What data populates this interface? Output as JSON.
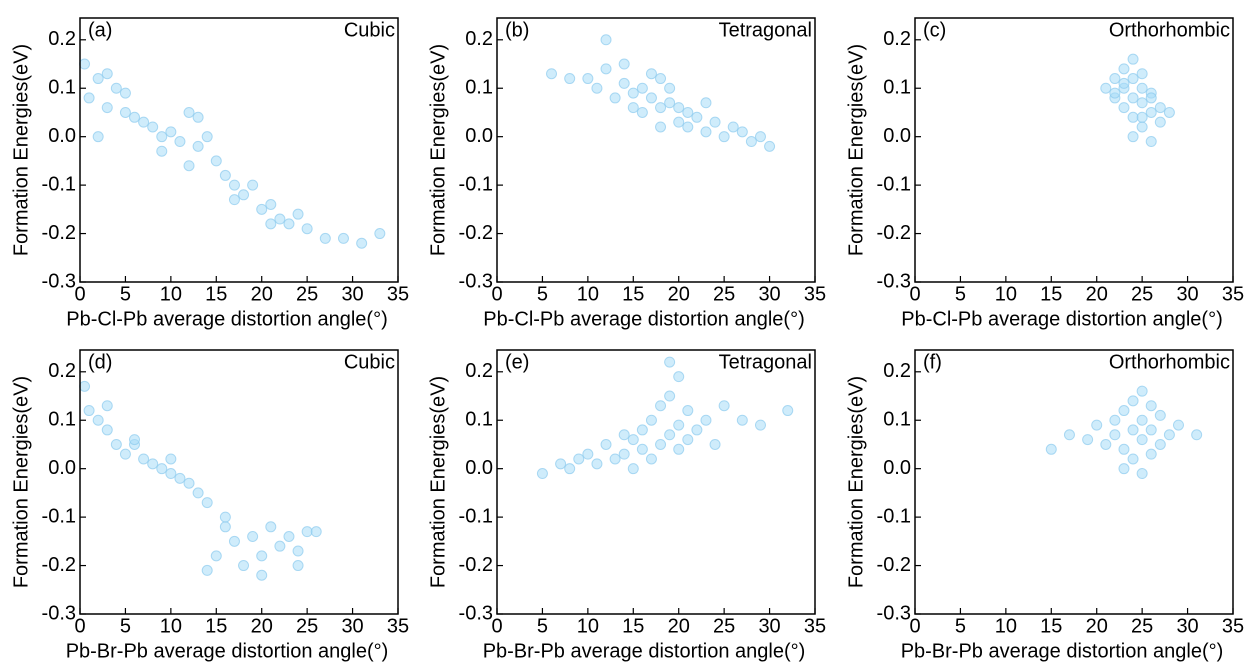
{
  "chart_data": [
    {
      "type": "scatter",
      "title": "(a)",
      "annotation": "Cubic",
      "x_label": "Pb-Cl-Pb average distortion angle(°)",
      "y_label": "Formation Energies(eV)",
      "color": "#a8dcf7",
      "x": [
        0.5,
        1,
        2,
        3,
        4,
        5,
        6,
        7,
        8,
        9,
        10,
        11,
        12,
        13,
        14,
        15,
        16,
        17,
        18,
        19,
        20,
        21,
        22,
        23,
        24,
        25,
        27,
        29,
        31,
        33,
        2,
        5,
        9,
        13,
        17,
        21,
        3,
        12
      ],
      "values": [
        0.15,
        0.08,
        0.12,
        0.06,
        0.1,
        0.05,
        0.04,
        0.03,
        0.02,
        0.0,
        0.01,
        -0.01,
        0.05,
        -0.02,
        0.0,
        -0.05,
        -0.08,
        -0.1,
        -0.12,
        -0.1,
        -0.15,
        -0.14,
        -0.17,
        -0.18,
        -0.16,
        -0.19,
        -0.21,
        -0.21,
        -0.22,
        -0.2,
        0.0,
        0.09,
        -0.03,
        0.04,
        -0.13,
        -0.18,
        0.13,
        -0.06
      ],
      "xlim": [
        0,
        35
      ],
      "ylim": [
        -0.3,
        0.245
      ],
      "xticks": [
        0,
        5,
        10,
        15,
        20,
        25,
        30,
        35
      ],
      "yticks": [
        -0.3,
        -0.2,
        -0.1,
        {
          "value": 0,
          "label": "0.0"
        },
        0.1,
        0.2
      ]
    },
    {
      "type": "scatter",
      "title": "(b)",
      "annotation": "Tetragonal",
      "x_label": "Pb-Cl-Pb average distortion angle(°)",
      "y_label": "Formation Energies(eV)",
      "color": "#a8dcf7",
      "x": [
        6,
        8,
        10,
        11,
        12,
        13,
        14,
        15,
        15,
        16,
        16,
        17,
        17,
        18,
        18,
        19,
        19,
        20,
        20,
        21,
        21,
        22,
        23,
        24,
        25,
        26,
        27,
        28,
        29,
        30,
        12,
        14,
        18,
        23
      ],
      "values": [
        0.13,
        0.12,
        0.12,
        0.1,
        0.14,
        0.08,
        0.11,
        0.09,
        0.06,
        0.1,
        0.05,
        0.08,
        0.13,
        0.06,
        0.02,
        0.07,
        0.1,
        0.03,
        0.06,
        0.05,
        0.02,
        0.04,
        0.01,
        0.03,
        0.0,
        0.02,
        0.01,
        -0.01,
        0.0,
        -0.02,
        0.2,
        0.15,
        0.12,
        0.07
      ],
      "xlim": [
        0,
        35
      ],
      "ylim": [
        -0.3,
        0.245
      ],
      "xticks": [
        0,
        5,
        10,
        15,
        20,
        25,
        30,
        35
      ],
      "yticks": [
        -0.3,
        -0.2,
        -0.1,
        {
          "value": 0,
          "label": "0.0"
        },
        0.1,
        0.2
      ]
    },
    {
      "type": "scatter",
      "title": "(c)",
      "annotation": "Orthorhombic",
      "x_label": "Pb-Cl-Pb average distortion angle(°)",
      "y_label": "Formation Energies(eV)",
      "color": "#a8dcf7",
      "x": [
        21,
        22,
        22,
        23,
        23,
        23,
        24,
        24,
        24,
        24,
        25,
        25,
        25,
        25,
        26,
        26,
        26,
        27,
        27,
        28,
        23,
        24,
        25,
        26,
        22
      ],
      "values": [
        0.1,
        0.08,
        0.12,
        0.06,
        0.1,
        0.14,
        0.04,
        0.08,
        0.12,
        0.16,
        0.02,
        0.07,
        0.1,
        0.13,
        0.05,
        0.09,
        -0.01,
        0.06,
        0.03,
        0.05,
        0.11,
        0.0,
        0.04,
        0.08,
        0.09
      ],
      "xlim": [
        0,
        35
      ],
      "ylim": [
        -0.3,
        0.245
      ],
      "xticks": [
        0,
        5,
        10,
        15,
        20,
        25,
        30,
        35
      ],
      "yticks": [
        -0.3,
        -0.2,
        -0.1,
        {
          "value": 0,
          "label": "0.0"
        },
        0.1,
        0.2
      ]
    },
    {
      "type": "scatter",
      "title": "(d)",
      "annotation": "Cubic",
      "x_label": "Pb-Br-Pb average distortion angle(°)",
      "y_label": "Formation Energies(eV)",
      "color": "#a8dcf7",
      "x": [
        0.5,
        1,
        2,
        3,
        4,
        5,
        6,
        7,
        8,
        9,
        10,
        11,
        12,
        13,
        14,
        15,
        16,
        17,
        18,
        19,
        20,
        21,
        22,
        23,
        24,
        25,
        26,
        3,
        6,
        10,
        14,
        16,
        20,
        24
      ],
      "values": [
        0.17,
        0.12,
        0.1,
        0.08,
        0.05,
        0.03,
        0.05,
        0.02,
        0.01,
        0.0,
        0.02,
        -0.02,
        -0.03,
        -0.05,
        -0.07,
        -0.18,
        -0.12,
        -0.15,
        -0.2,
        -0.14,
        -0.18,
        -0.12,
        -0.16,
        -0.14,
        -0.2,
        -0.13,
        -0.13,
        0.13,
        0.06,
        -0.01,
        -0.21,
        -0.1,
        -0.22,
        -0.17
      ],
      "xlim": [
        0,
        35
      ],
      "ylim": [
        -0.3,
        0.245
      ],
      "xticks": [
        0,
        5,
        10,
        15,
        20,
        25,
        30,
        35
      ],
      "yticks": [
        -0.3,
        -0.2,
        -0.1,
        {
          "value": 0,
          "label": "0.0"
        },
        0.1,
        0.2
      ]
    },
    {
      "type": "scatter",
      "title": "(e)",
      "annotation": "Tetragonal",
      "x_label": "Pb-Br-Pb average distortion angle(°)",
      "y_label": "Formation Energies(eV)",
      "color": "#a8dcf7",
      "x": [
        5,
        7,
        8,
        9,
        10,
        11,
        12,
        13,
        14,
        15,
        15,
        16,
        16,
        17,
        17,
        18,
        18,
        19,
        19,
        20,
        20,
        21,
        21,
        22,
        23,
        24,
        25,
        27,
        29,
        32,
        19,
        20,
        14
      ],
      "values": [
        -0.01,
        0.01,
        0.0,
        0.02,
        0.03,
        0.01,
        0.05,
        0.02,
        0.03,
        0.0,
        0.06,
        0.04,
        0.08,
        0.02,
        0.1,
        0.05,
        0.13,
        0.07,
        0.15,
        0.09,
        0.04,
        0.12,
        0.06,
        0.08,
        0.1,
        0.05,
        0.13,
        0.1,
        0.09,
        0.12,
        0.22,
        0.19,
        0.07
      ],
      "xlim": [
        0,
        35
      ],
      "ylim": [
        -0.3,
        0.245
      ],
      "xticks": [
        0,
        5,
        10,
        15,
        20,
        25,
        30,
        35
      ],
      "yticks": [
        -0.3,
        -0.2,
        -0.1,
        {
          "value": 0,
          "label": "0.0"
        },
        0.1,
        0.2
      ]
    },
    {
      "type": "scatter",
      "title": "(f)",
      "annotation": "Orthorhombic",
      "x_label": "Pb-Br-Pb average distortion angle(°)",
      "y_label": "Formation Energies(eV)",
      "color": "#a8dcf7",
      "x": [
        15,
        17,
        19,
        20,
        21,
        22,
        22,
        23,
        23,
        24,
        24,
        24,
        25,
        25,
        25,
        26,
        26,
        27,
        27,
        28,
        29,
        31,
        23,
        25,
        26
      ],
      "values": [
        0.04,
        0.07,
        0.06,
        0.09,
        0.05,
        0.1,
        0.07,
        0.12,
        0.04,
        0.08,
        0.14,
        0.02,
        0.1,
        0.06,
        -0.01,
        0.13,
        0.08,
        0.05,
        0.11,
        0.07,
        0.09,
        0.07,
        0.0,
        0.16,
        0.03
      ],
      "xlim": [
        0,
        35
      ],
      "ylim": [
        -0.3,
        0.245
      ],
      "xticks": [
        0,
        5,
        10,
        15,
        20,
        25,
        30,
        35
      ],
      "yticks": [
        -0.3,
        -0.2,
        -0.1,
        {
          "value": 0,
          "label": "0.0"
        },
        0.1,
        0.2
      ]
    }
  ]
}
